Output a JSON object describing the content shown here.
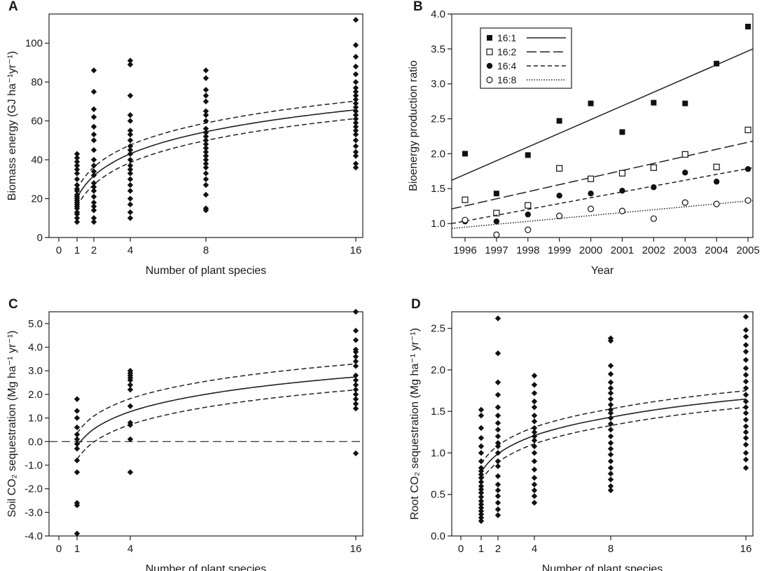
{
  "chart_data": [
    {
      "panel_label": "A",
      "type": "scatter",
      "xlabel": "Number of plant species",
      "ylabel": "Biomass energy (GJ ha⁻¹yr⁻¹)",
      "xlim": [
        0,
        16.5
      ],
      "ylim": [
        0,
        115
      ],
      "xticks": [
        0,
        1,
        2,
        4,
        8,
        16
      ],
      "yticks": [
        0,
        20,
        40,
        60,
        80,
        100
      ],
      "points": [
        {
          "x": 1,
          "ys": [
            8,
            10,
            12,
            13,
            15,
            16,
            17,
            18,
            19,
            20,
            21,
            22,
            24,
            25,
            27,
            30,
            33,
            35,
            37,
            39,
            41,
            43
          ]
        },
        {
          "x": 2,
          "ys": [
            8,
            10,
            14,
            16,
            18,
            21,
            24,
            26,
            28,
            32,
            34,
            37,
            40,
            45,
            50,
            53,
            57,
            62,
            66,
            75,
            86
          ]
        },
        {
          "x": 4,
          "ys": [
            10,
            13,
            17,
            20,
            24,
            27,
            30,
            33,
            35,
            37,
            40,
            43,
            45,
            47,
            50,
            53,
            55,
            60,
            63,
            73,
            89,
            91
          ]
        },
        {
          "x": 8,
          "ys": [
            14,
            15,
            22,
            27,
            30,
            33,
            36,
            38,
            40,
            42,
            44,
            46,
            48,
            50,
            52,
            54,
            56,
            60,
            63,
            65,
            70,
            73,
            76,
            82,
            86
          ]
        },
        {
          "x": 16,
          "ys": [
            36,
            38,
            42,
            44,
            47,
            50,
            53,
            55,
            57,
            59,
            61,
            63,
            65,
            67,
            69,
            71,
            73,
            75,
            77,
            80,
            84,
            88,
            93,
            99,
            112
          ]
        }
      ],
      "fit": {
        "model": "log",
        "a": 20.5,
        "b": 16.3
      },
      "ci_offset": 4.5
    },
    {
      "panel_label": "B",
      "type": "scatter",
      "xlabel": "Year",
      "ylabel": "Bioenergy production ratio",
      "xlim": [
        1996,
        2005
      ],
      "ylim": [
        0.8,
        4.0
      ],
      "xticks": [
        1996,
        1997,
        1998,
        1999,
        2000,
        2001,
        2002,
        2003,
        2004,
        2005
      ],
      "yticks": [
        1.0,
        1.5,
        2.0,
        2.5,
        3.0,
        3.5,
        4.0
      ],
      "series": [
        {
          "name": "16:1",
          "marker": "filled-square",
          "line": "solid",
          "values": [
            2.0,
            1.43,
            1.98,
            2.47,
            2.72,
            2.31,
            2.73,
            2.72,
            3.29,
            3.82
          ],
          "fit": [
            1.62,
            3.5
          ]
        },
        {
          "name": "16:2",
          "marker": "open-square",
          "line": "long-dash",
          "values": [
            1.34,
            1.15,
            1.26,
            1.79,
            1.64,
            1.72,
            1.8,
            1.99,
            1.81,
            2.34
          ],
          "fit": [
            1.21,
            2.18
          ]
        },
        {
          "name": "16:4",
          "marker": "filled-circle",
          "line": "short-dash",
          "values": [
            1.03,
            1.03,
            1.13,
            1.4,
            1.43,
            1.47,
            1.52,
            1.73,
            1.6,
            1.78
          ],
          "fit": [
            1.0,
            1.8
          ]
        },
        {
          "name": "16:8",
          "marker": "open-circle",
          "line": "dotted",
          "values": [
            1.05,
            0.84,
            0.91,
            1.11,
            1.21,
            1.18,
            1.07,
            1.3,
            1.28,
            1.33
          ],
          "fit": [
            0.93,
            1.33
          ]
        }
      ],
      "legend_position": "top-left"
    },
    {
      "panel_label": "C",
      "type": "scatter",
      "xlabel": "Number of plant species",
      "ylabel": "Soil CO₂ sequestration (Mg ha⁻¹ yr⁻¹)",
      "xlim": [
        0,
        16.5
      ],
      "ylim": [
        -4.0,
        5.5
      ],
      "xticks": [
        0,
        1,
        4,
        16
      ],
      "yticks": [
        -4.0,
        -3.0,
        -2.0,
        -1.0,
        0.0,
        1.0,
        2.0,
        3.0,
        4.0,
        5.0
      ],
      "yticklabels": [
        "-4.0",
        "-3.0",
        "-2.0",
        "-1.0",
        "0.0",
        "1.0",
        "2.0",
        "3.0",
        "4.0",
        "5.0"
      ],
      "points": [
        {
          "x": 1,
          "ys": [
            -3.9,
            -2.7,
            -2.6,
            -1.3,
            -0.8,
            -0.3,
            -0.1,
            0.1,
            0.3,
            0.6,
            1.0,
            1.3,
            1.8
          ]
        },
        {
          "x": 4,
          "ys": [
            -1.3,
            0.1,
            0.7,
            0.8,
            1.5,
            2.2,
            2.4,
            2.6,
            2.7,
            2.8,
            2.9,
            3.0
          ]
        },
        {
          "x": 16,
          "ys": [
            -0.5,
            1.4,
            1.6,
            1.8,
            2.0,
            2.2,
            2.4,
            2.6,
            2.8,
            3.2,
            3.4,
            3.6,
            3.8,
            3.9,
            4.3,
            4.7,
            5.5
          ]
        }
      ],
      "fit": {
        "model": "log",
        "a": -0.2,
        "b": 1.06
      },
      "ci_offset": 0.55,
      "reference_line": 0.0
    },
    {
      "panel_label": "D",
      "type": "scatter",
      "xlabel": "Number of plant species",
      "ylabel": "Root CO₂ sequestration (Mg ha⁻¹ yr⁻¹)",
      "xlim": [
        0,
        16.5
      ],
      "ylim": [
        0,
        2.7
      ],
      "xticks": [
        0,
        1,
        2,
        4,
        8,
        16
      ],
      "yticks": [
        0.0,
        0.5,
        1.0,
        1.5,
        2.0,
        2.5
      ],
      "yticklabels": [
        "0.0",
        "0.5",
        "1.0",
        "1.5",
        "2.0",
        "2.5"
      ],
      "points": [
        {
          "x": 1,
          "ys": [
            0.18,
            0.22,
            0.26,
            0.3,
            0.34,
            0.38,
            0.42,
            0.47,
            0.52,
            0.56,
            0.6,
            0.65,
            0.7,
            0.74,
            0.78,
            0.82,
            0.9,
            1.0,
            1.08,
            1.18,
            1.3,
            1.45,
            1.52
          ]
        },
        {
          "x": 2,
          "ys": [
            0.25,
            0.32,
            0.4,
            0.48,
            0.55,
            0.62,
            0.72,
            0.84,
            0.9,
            1.0,
            1.08,
            1.12,
            1.2,
            1.28,
            1.36,
            1.45,
            1.55,
            1.7,
            1.85,
            2.2,
            2.62
          ]
        },
        {
          "x": 4,
          "ys": [
            0.4,
            0.48,
            0.55,
            0.62,
            0.7,
            0.8,
            0.9,
            1.0,
            1.08,
            1.15,
            1.2,
            1.25,
            1.3,
            1.38,
            1.45,
            1.55,
            1.62,
            1.72,
            1.82,
            1.93
          ]
        },
        {
          "x": 8,
          "ys": [
            0.55,
            0.6,
            0.68,
            0.75,
            0.82,
            0.9,
            0.98,
            1.05,
            1.12,
            1.2,
            1.28,
            1.35,
            1.42,
            1.48,
            1.52,
            1.58,
            1.65,
            1.72,
            1.78,
            1.85,
            1.95,
            2.05,
            2.35,
            2.38
          ]
        },
        {
          "x": 16,
          "ys": [
            0.82,
            0.92,
            1.0,
            1.1,
            1.18,
            1.25,
            1.32,
            1.4,
            1.48,
            1.55,
            1.62,
            1.7,
            1.78,
            1.86,
            1.94,
            2.02,
            2.12,
            2.22,
            2.3,
            2.4,
            2.48,
            2.64
          ]
        }
      ],
      "fit": {
        "model": "log",
        "a": 0.77,
        "b": 0.317
      },
      "ci_offset": 0.1
    }
  ]
}
